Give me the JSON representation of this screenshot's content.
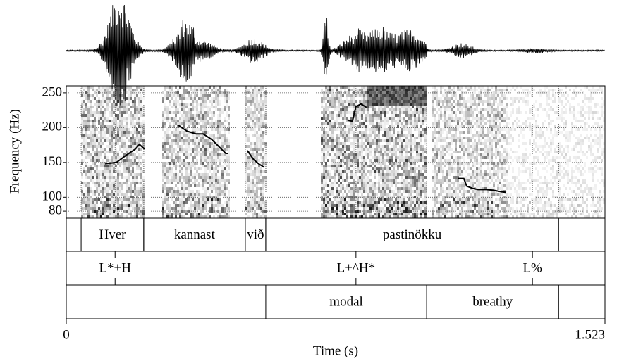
{
  "chart_data": {
    "type": "spectrogram",
    "xlabel": "Time (s)",
    "ylabel": "Frequency (Hz)",
    "xlim": [
      0,
      1.523
    ],
    "xticks": [
      0,
      1.523
    ],
    "ylim": [
      70,
      260
    ],
    "yticks": [
      80,
      100,
      150,
      200,
      250
    ],
    "grid": true,
    "pitch": {
      "color": "#000000",
      "x": [
        0.11,
        0.142,
        0.171,
        0.195,
        0.207,
        0.221,
        null,
        0.315,
        0.341,
        0.367,
        0.387,
        0.411,
        0.435,
        0.451,
        0.457,
        null,
        0.512,
        0.53,
        0.544,
        0.56,
        null,
        0.795,
        0.809,
        0.819,
        0.833,
        0.849,
        null,
        1.108,
        1.124,
        1.132,
        1.148,
        1.164,
        1.188,
        1.208,
        1.228,
        1.244
      ],
      "values": [
        148,
        150,
        161,
        169,
        176,
        169,
        null,
        204,
        195,
        191,
        191,
        183,
        171,
        163,
        163,
        null,
        167,
        154,
        148,
        143,
        null,
        211,
        209,
        230,
        234,
        229,
        null,
        127,
        127,
        116,
        113,
        111,
        111,
        110,
        108,
        107
      ]
    },
    "tiers": [
      {
        "intervals": [
          {
            "start": 0.042,
            "end": 0.219,
            "label": "Hver"
          },
          {
            "start": 0.219,
            "end": 0.506,
            "label": "kannast"
          },
          {
            "start": 0.506,
            "end": 0.564,
            "label": "við"
          },
          {
            "start": 0.564,
            "end": 1.392,
            "label": "pastinökku"
          }
        ]
      },
      {
        "points": [
          {
            "time": 0.138,
            "label": "L*+H"
          },
          {
            "time": 0.819,
            "label": "L+^H*"
          },
          {
            "time": 1.318,
            "label": "L%"
          }
        ]
      },
      {
        "intervals": [
          {
            "start": 0.564,
            "end": 1.019,
            "label": "modal"
          },
          {
            "start": 1.019,
            "end": 1.392,
            "label": "breathy"
          }
        ]
      }
    ]
  }
}
